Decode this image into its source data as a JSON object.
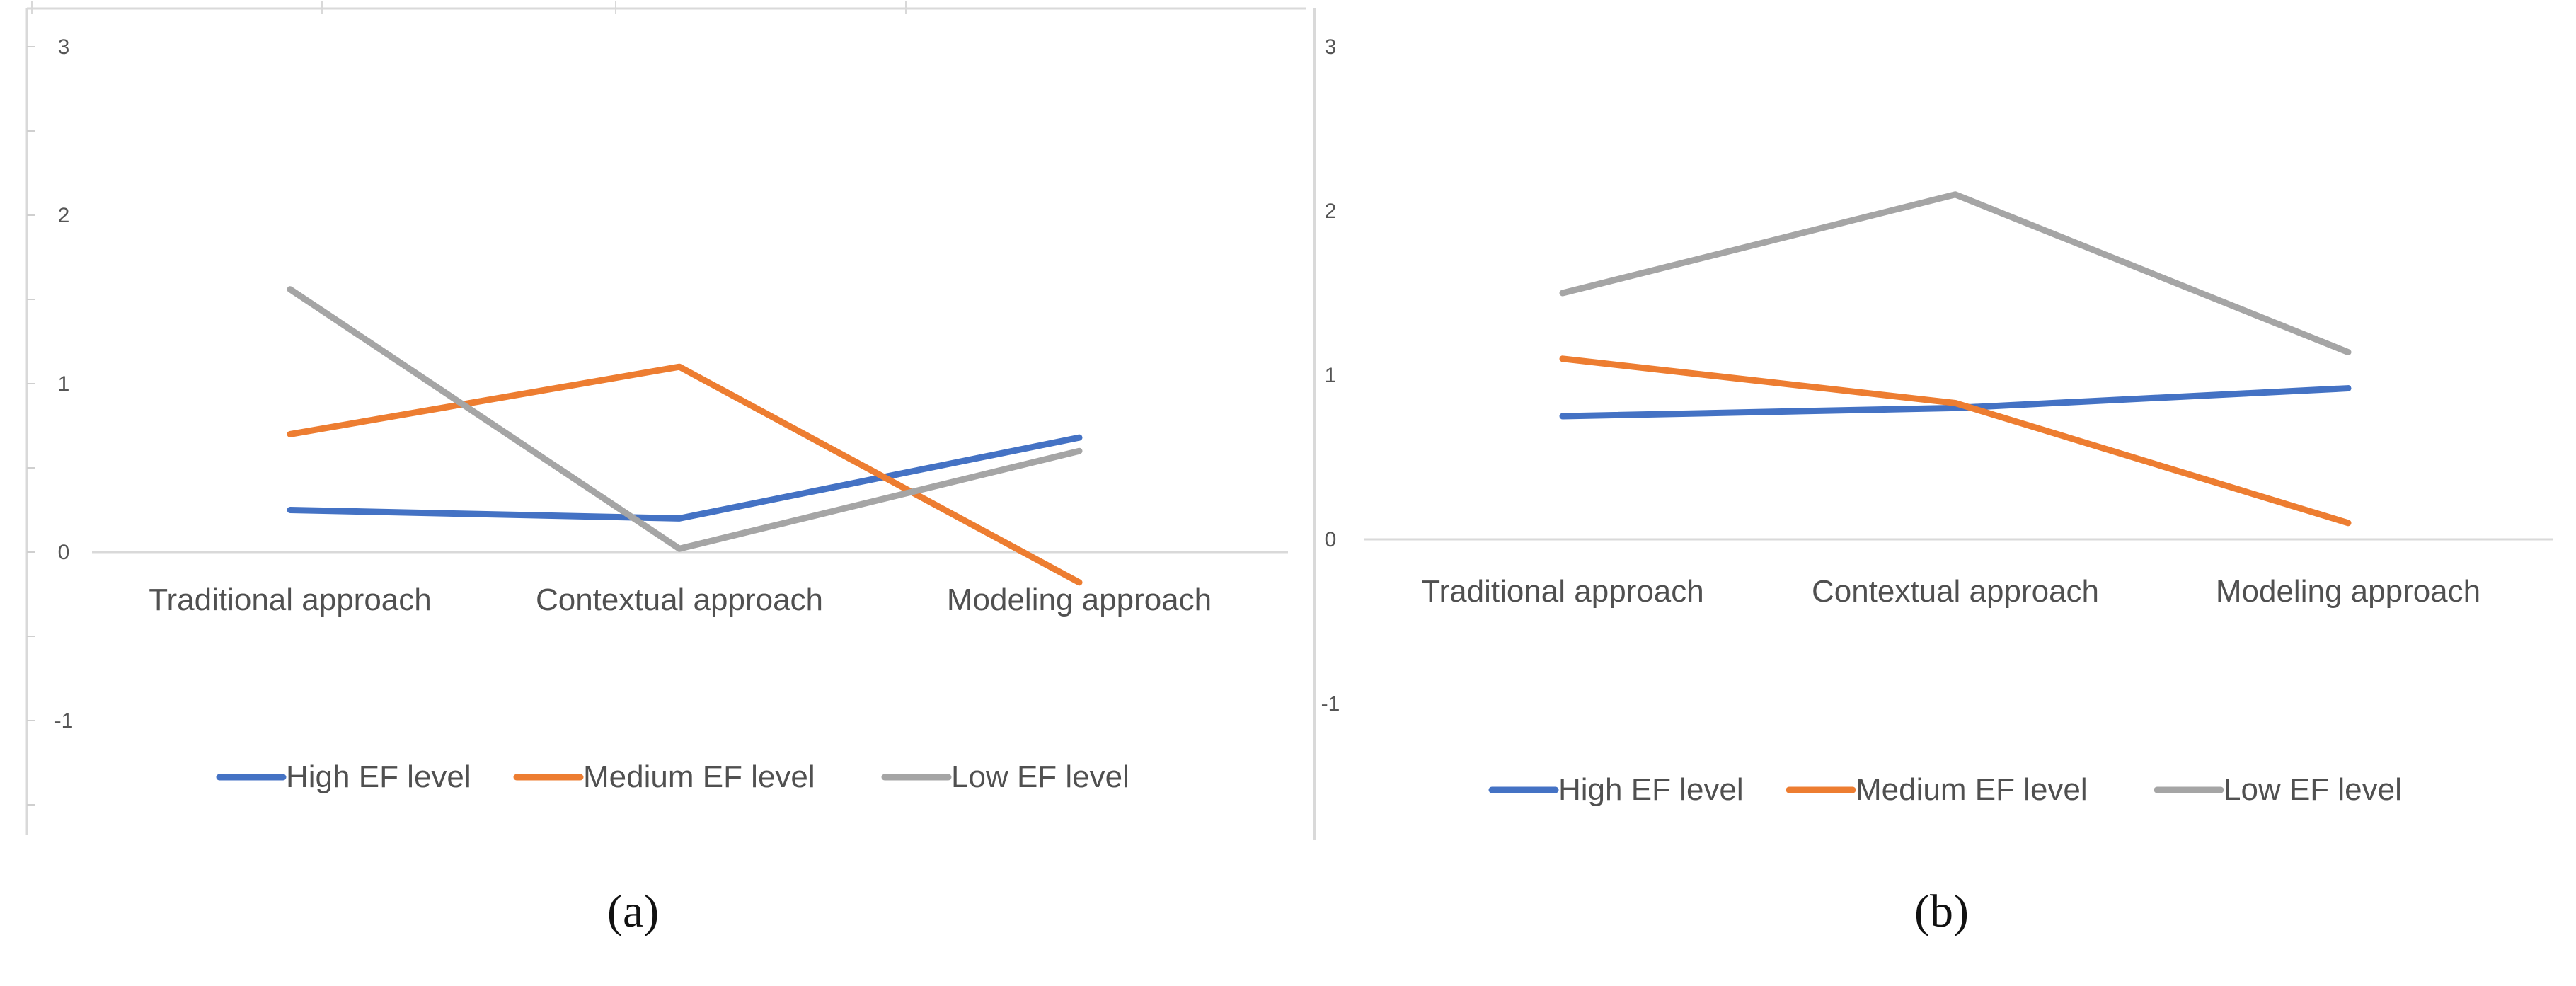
{
  "chart_data": [
    {
      "type": "line",
      "caption": "(a)",
      "categories": [
        "Traditional approach",
        "Contextual approach",
        "Modeling approach"
      ],
      "series": [
        {
          "name": "High EF level",
          "color": "#4472c4",
          "values": [
            0.25,
            0.2,
            0.68
          ]
        },
        {
          "name": "Medium EF level",
          "color": "#ed7d31",
          "values": [
            0.7,
            1.1,
            -0.18
          ]
        },
        {
          "name": "Low EF level",
          "color": "#a5a5a5",
          "values": [
            1.56,
            0.02,
            0.6
          ]
        }
      ],
      "yticks": [
        "3",
        "2",
        "1",
        "0",
        "-1"
      ],
      "ylim": [
        -1.7,
        3.2
      ],
      "grid": false,
      "legend": "bottom",
      "title": "",
      "xlabel": "",
      "ylabel": ""
    },
    {
      "type": "line",
      "caption": "(b)",
      "categories": [
        "Traditional approach",
        "Contextual approach",
        "Modeling approach"
      ],
      "series": [
        {
          "name": "High EF level",
          "color": "#4472c4",
          "values": [
            0.75,
            0.8,
            0.92
          ]
        },
        {
          "name": "Medium EF level",
          "color": "#ed7d31",
          "values": [
            1.1,
            0.83,
            0.1
          ]
        },
        {
          "name": "Low EF level",
          "color": "#a5a5a5",
          "values": [
            1.5,
            2.1,
            1.14
          ]
        }
      ],
      "yticks": [
        "3",
        "2",
        "1",
        "0",
        "-1"
      ],
      "ylim": [
        -1.8,
        3.2
      ],
      "grid": false,
      "legend": "bottom",
      "title": "",
      "xlabel": "",
      "ylabel": ""
    }
  ]
}
